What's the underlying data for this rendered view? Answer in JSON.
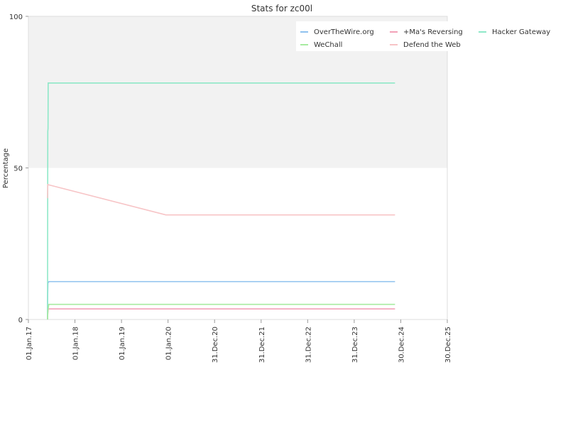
{
  "chart_data": {
    "type": "line",
    "title": "Stats for zc00l",
    "xlabel": "",
    "ylabel": "Percentage",
    "xlim": [
      "2017-01-01",
      "2025-12-30"
    ],
    "ylim": [
      0,
      100
    ],
    "x_tick_labels": [
      "01.Jan.17",
      "01.Jan.18",
      "01.Jan.19",
      "01.Jan.20",
      "31.Dec.20",
      "31.Dec.21",
      "31.Dec.22",
      "31.Dec.23",
      "30.Dec.24",
      "30.Dec.25"
    ],
    "y_tick_labels": [
      "0",
      "50",
      "100"
    ],
    "background_bands": [
      {
        "from": 50,
        "to": 100,
        "color": "#f2f2f2"
      }
    ],
    "legend_position": "top-right",
    "series": [
      {
        "name": "OverTheWire.org",
        "color": "#8fc1ee",
        "points": [
          [
            "2017-05-31",
            0
          ],
          [
            "2017-05-31",
            5
          ],
          [
            "2017-06-03",
            12
          ],
          [
            "2017-06-10",
            12.5
          ],
          [
            "2024-11-15",
            12.5
          ]
        ]
      },
      {
        "name": "+Ma's Reversing",
        "color": "#f2a1b8",
        "points": [
          [
            "2017-05-31",
            0
          ],
          [
            "2017-06-02",
            2
          ],
          [
            "2017-06-06",
            3.5
          ],
          [
            "2024-11-15",
            3.5
          ]
        ]
      },
      {
        "name": "Hacker Gateway",
        "color": "#8ee8c8",
        "points": [
          [
            "2017-05-31",
            0
          ],
          [
            "2017-06-02",
            62
          ],
          [
            "2017-06-04",
            63
          ],
          [
            "2017-06-05",
            78
          ],
          [
            "2024-11-15",
            78
          ]
        ]
      },
      {
        "name": "WeChall",
        "color": "#a7eba0",
        "points": [
          [
            "2017-05-31",
            0
          ],
          [
            "2017-06-03",
            3
          ],
          [
            "2017-06-10",
            5
          ],
          [
            "2024-11-15",
            5
          ]
        ]
      },
      {
        "name": "Defend the Web",
        "color": "#f7c4c6",
        "points": [
          [
            "2017-05-31",
            40
          ],
          [
            "2017-06-02",
            44.5
          ],
          [
            "2019-12-15",
            34.5
          ],
          [
            "2024-11-15",
            34.5
          ]
        ]
      }
    ]
  }
}
